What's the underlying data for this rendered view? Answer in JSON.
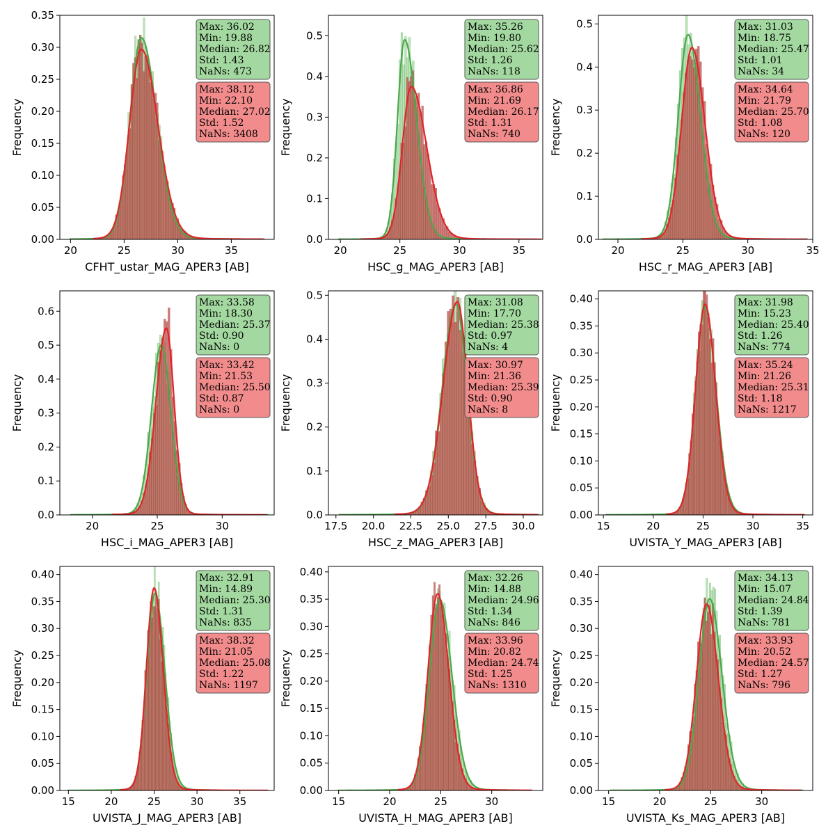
{
  "colors": {
    "green_fill": "#a6d8a3",
    "green_line": "#4aa84a",
    "green_box": "#a3d9a0",
    "red_fill": "#c0504d",
    "red_line": "#e0252a",
    "red_box": "#f28c8c",
    "hist_edge": "#8a4a3a"
  },
  "chart_data": [
    {
      "type": "histogram",
      "xlabel": "CFHT_ustar_MAG_APER3 [AB]",
      "ylabel": "Frequency",
      "xlim": [
        19,
        39
      ],
      "ylim": [
        0,
        0.35
      ],
      "xticks": [
        20,
        25,
        30,
        35
      ],
      "yticks": [
        0.0,
        0.05,
        0.1,
        0.15,
        0.2,
        0.25,
        0.3,
        0.35
      ],
      "ytick_decimals": 2,
      "green": {
        "peak_x": 26.6,
        "peak_y": 0.315,
        "sigma_l": 1.05,
        "sigma_r": 1.45,
        "lo": 19.9,
        "hi": 36.0,
        "stats": {
          "max": "36.02",
          "min": "19.88",
          "median": "26.82",
          "std": "1.43",
          "nans": "473"
        }
      },
      "red": {
        "peak_x": 26.6,
        "peak_y": 0.297,
        "sigma_l": 1.1,
        "sigma_r": 1.55,
        "lo": 22.1,
        "hi": 38.1,
        "stats": {
          "max": "38.12",
          "min": "22.10",
          "median": "27.02",
          "std": "1.52",
          "nans": "3408"
        }
      }
    },
    {
      "type": "histogram",
      "xlabel": "HSC_g_MAG_APER3 [AB]",
      "ylabel": "Frequency",
      "xlim": [
        19,
        37
      ],
      "ylim": [
        0,
        0.55
      ],
      "xticks": [
        20,
        25,
        30,
        35
      ],
      "yticks": [
        0.0,
        0.1,
        0.2,
        0.3,
        0.4,
        0.5
      ],
      "ytick_decimals": 1,
      "green": {
        "peak_x": 25.4,
        "peak_y": 0.49,
        "sigma_l": 0.6,
        "sigma_r": 1.0,
        "lo": 19.8,
        "hi": 35.3,
        "stats": {
          "max": "35.26",
          "min": "19.80",
          "median": "25.62",
          "std": "1.26",
          "nans": "118"
        }
      },
      "red": {
        "peak_x": 25.95,
        "peak_y": 0.375,
        "sigma_l": 0.75,
        "sigma_r": 1.3,
        "lo": 21.7,
        "hi": 36.9,
        "stats": {
          "max": "36.86",
          "min": "21.69",
          "median": "26.17",
          "std": "1.31",
          "nans": "740"
        }
      }
    },
    {
      "type": "histogram",
      "xlabel": "HSC_r_MAG_APER3 [AB]",
      "ylabel": "Frequency",
      "xlim": [
        18.5,
        35
      ],
      "ylim": [
        0,
        0.52
      ],
      "xticks": [
        20,
        25,
        30,
        35
      ],
      "yticks": [
        0.0,
        0.1,
        0.2,
        0.3,
        0.4,
        0.5
      ],
      "ytick_decimals": 1,
      "green": {
        "peak_x": 25.4,
        "peak_y": 0.475,
        "sigma_l": 0.75,
        "sigma_r": 0.95,
        "lo": 18.8,
        "hi": 31.0,
        "stats": {
          "max": "31.03",
          "min": "18.75",
          "median": "25.47",
          "std": "1.01",
          "nans": "34"
        }
      },
      "red": {
        "peak_x": 25.7,
        "peak_y": 0.445,
        "sigma_l": 0.8,
        "sigma_r": 1.0,
        "lo": 21.8,
        "hi": 34.6,
        "stats": {
          "max": "34.64",
          "min": "21.79",
          "median": "25.70",
          "std": "1.08",
          "nans": "120"
        }
      }
    },
    {
      "type": "histogram",
      "xlabel": "HSC_i_MAG_APER3 [AB]",
      "ylabel": "Frequency",
      "xlim": [
        17.5,
        34
      ],
      "ylim": [
        0,
        0.66
      ],
      "xticks": [
        20,
        25,
        30
      ],
      "yticks": [
        0.0,
        0.1,
        0.2,
        0.3,
        0.4,
        0.5,
        0.6
      ],
      "ytick_decimals": 1,
      "green": {
        "peak_x": 25.3,
        "peak_y": 0.5,
        "sigma_l": 0.75,
        "sigma_r": 0.75,
        "lo": 18.3,
        "hi": 33.6,
        "stats": {
          "max": "33.58",
          "min": "18.30",
          "median": "25.37",
          "std": "0.90",
          "nans": "0"
        }
      },
      "red": {
        "peak_x": 25.7,
        "peak_y": 0.55,
        "sigma_l": 0.8,
        "sigma_r": 0.6,
        "lo": 21.5,
        "hi": 33.4,
        "stats": {
          "max": "33.42",
          "min": "21.53",
          "median": "25.50",
          "std": "0.87",
          "nans": "0"
        }
      }
    },
    {
      "type": "histogram",
      "xlabel": "HSC_z_MAG_APER3 [AB]",
      "ylabel": "Frequency",
      "xlim": [
        17,
        31.3
      ],
      "ylim": [
        0,
        0.51
      ],
      "xticks": [
        17.5,
        20.0,
        22.5,
        25.0,
        27.5,
        30.0
      ],
      "xtick_decimals": 1,
      "yticks": [
        0.0,
        0.1,
        0.2,
        0.3,
        0.4,
        0.5
      ],
      "ytick_decimals": 1,
      "green": {
        "peak_x": 25.5,
        "peak_y": 0.48,
        "sigma_l": 0.9,
        "sigma_r": 0.75,
        "lo": 17.7,
        "hi": 31.1,
        "stats": {
          "max": "31.08",
          "min": "17.70",
          "median": "25.38",
          "std": "0.97",
          "nans": "4"
        }
      },
      "red": {
        "peak_x": 25.6,
        "peak_y": 0.485,
        "sigma_l": 0.95,
        "sigma_r": 0.7,
        "lo": 21.4,
        "hi": 31.0,
        "stats": {
          "max": "30.97",
          "min": "21.36",
          "median": "25.39",
          "std": "0.90",
          "nans": "8"
        }
      }
    },
    {
      "type": "histogram",
      "xlabel": "UVISTA_Y_MAG_APER3 [AB]",
      "ylabel": "Frequency",
      "xlim": [
        14.5,
        36
      ],
      "ylim": [
        0,
        0.415
      ],
      "xticks": [
        15,
        20,
        25,
        30,
        35
      ],
      "yticks": [
        0.0,
        0.05,
        0.1,
        0.15,
        0.2,
        0.25,
        0.3,
        0.35,
        0.4
      ],
      "ytick_decimals": 2,
      "green": {
        "peak_x": 25.2,
        "peak_y": 0.385,
        "sigma_l": 0.95,
        "sigma_r": 1.1,
        "lo": 15.2,
        "hi": 32.0,
        "stats": {
          "max": "31.98",
          "min": "15.23",
          "median": "25.40",
          "std": "1.26",
          "nans": "774"
        }
      },
      "red": {
        "peak_x": 25.2,
        "peak_y": 0.39,
        "sigma_l": 0.95,
        "sigma_r": 1.05,
        "lo": 21.3,
        "hi": 35.2,
        "stats": {
          "max": "35.24",
          "min": "21.26",
          "median": "25.31",
          "std": "1.18",
          "nans": "1217"
        }
      }
    },
    {
      "type": "histogram",
      "xlabel": "UVISTA_J_MAG_APER3 [AB]",
      "ylabel": "Frequency",
      "xlim": [
        14,
        39
      ],
      "ylim": [
        0,
        0.415
      ],
      "xticks": [
        15,
        20,
        25,
        30,
        35
      ],
      "yticks": [
        0.0,
        0.05,
        0.1,
        0.15,
        0.2,
        0.25,
        0.3,
        0.35,
        0.4
      ],
      "ytick_decimals": 2,
      "green": {
        "peak_x": 25.1,
        "peak_y": 0.365,
        "sigma_l": 0.95,
        "sigma_r": 1.15,
        "lo": 14.9,
        "hi": 32.9,
        "stats": {
          "max": "32.91",
          "min": "14.89",
          "median": "25.30",
          "std": "1.31",
          "nans": "835"
        }
      },
      "red": {
        "peak_x": 25.0,
        "peak_y": 0.375,
        "sigma_l": 0.9,
        "sigma_r": 1.05,
        "lo": 21.0,
        "hi": 38.3,
        "stats": {
          "max": "38.32",
          "min": "21.05",
          "median": "25.08",
          "std": "1.22",
          "nans": "1197"
        }
      }
    },
    {
      "type": "histogram",
      "xlabel": "UVISTA_H_MAG_APER3 [AB]",
      "ylabel": "Frequency",
      "xlim": [
        14,
        35
      ],
      "ylim": [
        0,
        0.41
      ],
      "xticks": [
        15,
        20,
        25,
        30
      ],
      "yticks": [
        0.0,
        0.05,
        0.1,
        0.15,
        0.2,
        0.25,
        0.3,
        0.35,
        0.4
      ],
      "ytick_decimals": 2,
      "green": {
        "peak_x": 24.9,
        "peak_y": 0.35,
        "sigma_l": 1.0,
        "sigma_r": 1.2,
        "lo": 14.9,
        "hi": 32.3,
        "stats": {
          "max": "32.26",
          "min": "14.88",
          "median": "24.96",
          "std": "1.34",
          "nans": "846"
        }
      },
      "red": {
        "peak_x": 24.7,
        "peak_y": 0.36,
        "sigma_l": 0.95,
        "sigma_r": 1.1,
        "lo": 20.8,
        "hi": 34.0,
        "stats": {
          "max": "33.96",
          "min": "20.82",
          "median": "24.74",
          "std": "1.25",
          "nans": "1310"
        }
      }
    },
    {
      "type": "histogram",
      "xlabel": "UVISTA_Ks_MAG_APER3 [AB]",
      "ylabel": "Frequency",
      "xlim": [
        14,
        35
      ],
      "ylim": [
        0,
        0.415
      ],
      "xticks": [
        15,
        20,
        25,
        30
      ],
      "yticks": [
        0.0,
        0.05,
        0.1,
        0.15,
        0.2,
        0.25,
        0.3,
        0.35,
        0.4
      ],
      "ytick_decimals": 2,
      "green": {
        "peak_x": 24.9,
        "peak_y": 0.355,
        "sigma_l": 1.05,
        "sigma_r": 1.2,
        "lo": 15.1,
        "hi": 34.1,
        "stats": {
          "max": "34.13",
          "min": "15.07",
          "median": "24.84",
          "std": "1.39",
          "nans": "781"
        }
      },
      "red": {
        "peak_x": 24.6,
        "peak_y": 0.345,
        "sigma_l": 1.0,
        "sigma_r": 1.15,
        "lo": 20.5,
        "hi": 33.9,
        "stats": {
          "max": "33.93",
          "min": "20.52",
          "median": "24.57",
          "std": "1.27",
          "nans": "796"
        }
      }
    }
  ]
}
